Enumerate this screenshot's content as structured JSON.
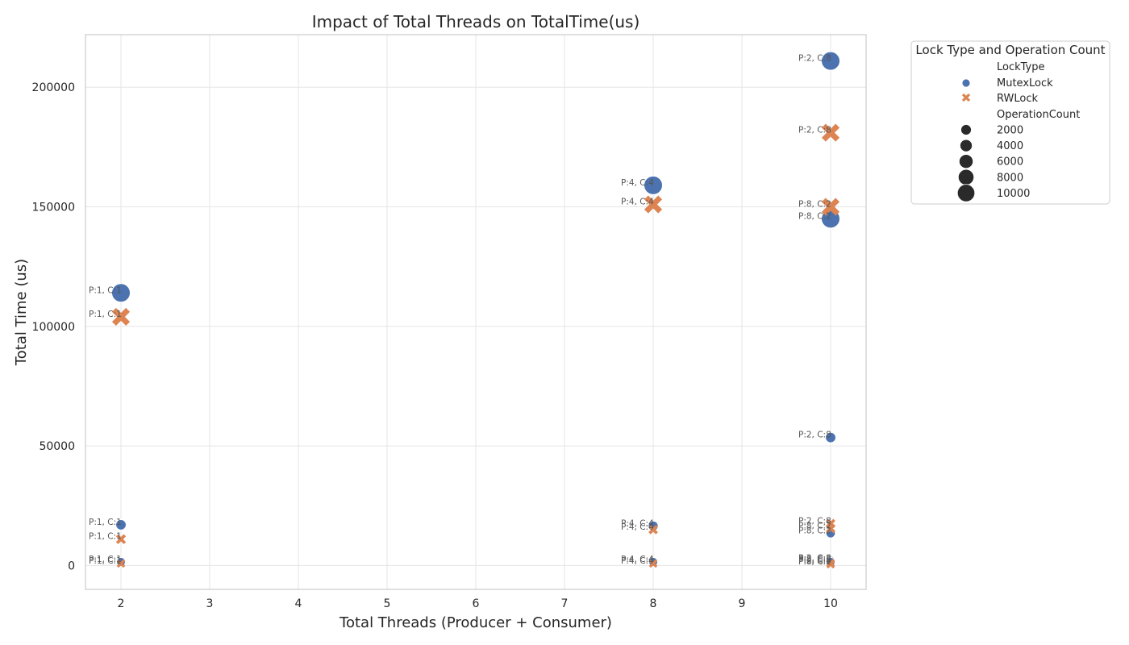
{
  "chart_data": {
    "type": "scatter",
    "title": "Impact of Total Threads on TotalTime(us)",
    "xlabel": "Total Threads (Producer + Consumer)",
    "ylabel": "Total Time (us)",
    "xlim": [
      1.6,
      10.4
    ],
    "ylim": [
      -10000,
      222000
    ],
    "xticks": [
      2,
      3,
      4,
      5,
      6,
      7,
      8,
      9,
      10
    ],
    "yticks": [
      0,
      50000,
      100000,
      150000,
      200000
    ],
    "grid": true,
    "legend": {
      "title": "Lock Type and Operation Count",
      "placement": "outside-top-right",
      "hue_title": "LockType",
      "size_title": "OperationCount",
      "size_levels": [
        2000,
        4000,
        6000,
        8000,
        10000
      ]
    },
    "colors": {
      "MutexLock": "#4C72B0",
      "RWLock": "#DD8452"
    },
    "series": [
      {
        "name": "MutexLock",
        "marker": "circle",
        "points": [
          {
            "x": 2,
            "y": 114000,
            "ops": 10000,
            "label": "P:1, C:1"
          },
          {
            "x": 2,
            "y": 17000,
            "ops": 2000,
            "label": "P:1, C:1"
          },
          {
            "x": 2,
            "y": 1500,
            "ops": 500,
            "label": "P:1, C:1"
          },
          {
            "x": 8,
            "y": 159000,
            "ops": 10000,
            "label": "P:4, C:4"
          },
          {
            "x": 8,
            "y": 16500,
            "ops": 1500,
            "label": "P:4, C:4"
          },
          {
            "x": 8,
            "y": 1500,
            "ops": 500,
            "label": "P:4, C:4"
          },
          {
            "x": 10,
            "y": 211000,
            "ops": 10000,
            "label": "P:2, C:8"
          },
          {
            "x": 10,
            "y": 145000,
            "ops": 10000,
            "label": "P:8, C:2"
          },
          {
            "x": 10,
            "y": 53500,
            "ops": 2000,
            "label": "P:2, C:8"
          },
          {
            "x": 10,
            "y": 13500,
            "ops": 1000,
            "label": "P:8, C:2"
          },
          {
            "x": 10,
            "y": 2000,
            "ops": 500,
            "label": "P:2, C:8"
          },
          {
            "x": 10,
            "y": 1500,
            "ops": 500,
            "label": "P:8, C:2"
          }
        ]
      },
      {
        "name": "RWLock",
        "marker": "x",
        "points": [
          {
            "x": 2,
            "y": 104000,
            "ops": 10000,
            "label": "P:1, C:1"
          },
          {
            "x": 2,
            "y": 11000,
            "ops": 2000,
            "label": "P:1, C:1"
          },
          {
            "x": 2,
            "y": 800,
            "ops": 500,
            "label": "P:1, C:1"
          },
          {
            "x": 8,
            "y": 151000,
            "ops": 10000,
            "label": "P:4, C:4"
          },
          {
            "x": 8,
            "y": 15000,
            "ops": 1500,
            "label": "P:4, C:4"
          },
          {
            "x": 8,
            "y": 800,
            "ops": 500,
            "label": "P:4, C:4"
          },
          {
            "x": 10,
            "y": 181000,
            "ops": 10000,
            "label": "P:2, C:8"
          },
          {
            "x": 10,
            "y": 150000,
            "ops": 10000,
            "label": "P:8, C:2"
          },
          {
            "x": 10,
            "y": 17500,
            "ops": 1500,
            "label": "P:2, C:8"
          },
          {
            "x": 10,
            "y": 15500,
            "ops": 1500,
            "label": "P:8, C:2"
          },
          {
            "x": 10,
            "y": 1000,
            "ops": 500,
            "label": "P:2, C:8"
          },
          {
            "x": 10,
            "y": 500,
            "ops": 500,
            "label": "P:8, C:2"
          }
        ]
      }
    ]
  }
}
